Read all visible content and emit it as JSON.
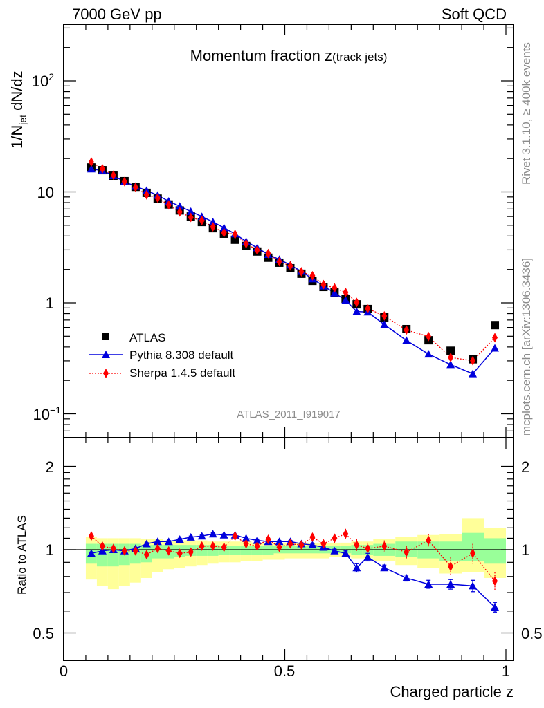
{
  "header": {
    "energy": "7000 GeV pp",
    "category": "Soft QCD"
  },
  "side_text": {
    "rivet": "Rivet 3.1.10, ≥ 400k events",
    "mcplots": "mcplots.cern.ch [arXiv:1306.3436]"
  },
  "chart_data": [
    {
      "type": "scatter",
      "title": "Momentum fraction z",
      "title_suffix": "(track jets)",
      "ylabel_main": "1/N",
      "ylabel_sub": "jet",
      "ylabel_tail": " dN/dz",
      "xlabel": "Charged particle z",
      "analysis_id": "ATLAS_2011_I919017",
      "yscale": "log",
      "xlim": [
        0,
        1.017
      ],
      "ylim": [
        0.06,
        320
      ],
      "y_ticks": [
        {
          "base": "10",
          "exp": "2"
        },
        {
          "base": "10",
          "exp": ""
        },
        {
          "base": "1",
          "exp": ""
        },
        {
          "base": "10",
          "exp": "−1"
        }
      ],
      "y_tick_values": [
        100,
        10,
        1,
        0.1
      ],
      "legend": {
        "placement": "lower-left",
        "entries": [
          "ATLAS",
          "Pythia 8.308 default",
          "Sherpa 1.4.5 default"
        ]
      },
      "x": [
        0.0625,
        0.0875,
        0.1125,
        0.1375,
        0.1625,
        0.1875,
        0.2125,
        0.2375,
        0.2625,
        0.2875,
        0.3125,
        0.3375,
        0.3625,
        0.3875,
        0.4125,
        0.4375,
        0.4625,
        0.4875,
        0.5125,
        0.5375,
        0.5625,
        0.5875,
        0.6125,
        0.6375,
        0.6625,
        0.6875,
        0.725,
        0.775,
        0.825,
        0.875,
        0.925,
        0.975
      ],
      "bin_edges": [
        0.05,
        0.075,
        0.1,
        0.125,
        0.15,
        0.175,
        0.2,
        0.225,
        0.25,
        0.275,
        0.3,
        0.325,
        0.35,
        0.375,
        0.4,
        0.425,
        0.45,
        0.475,
        0.5,
        0.525,
        0.55,
        0.575,
        0.6,
        0.625,
        0.65,
        0.675,
        0.7,
        0.75,
        0.8,
        0.85,
        0.9,
        0.95,
        1.0
      ],
      "series": [
        {
          "name": "ATLAS",
          "color": "#000000",
          "marker": "square",
          "values": [
            16.6,
            15.7,
            14.0,
            12.5,
            11.1,
            9.8,
            8.7,
            7.7,
            6.8,
            6.0,
            5.35,
            4.7,
            4.2,
            3.7,
            3.25,
            2.9,
            2.55,
            2.3,
            2.05,
            1.83,
            1.58,
            1.39,
            1.24,
            1.09,
            0.97,
            0.88,
            0.74,
            0.58,
            0.46,
            0.37,
            0.31,
            0.63
          ]
        },
        {
          "name": "Pythia 8.308 default",
          "color": "#0000dd",
          "marker": "triangle",
          "line": "solid",
          "ratio": [
            0.97,
            0.99,
            1.0,
            0.99,
            1.01,
            1.05,
            1.07,
            1.07,
            1.09,
            1.11,
            1.12,
            1.14,
            1.13,
            1.13,
            1.1,
            1.08,
            1.07,
            1.07,
            1.07,
            1.05,
            1.04,
            1.02,
            0.99,
            0.97,
            0.86,
            0.94,
            0.86,
            0.79,
            0.75,
            0.75,
            0.74,
            0.62
          ],
          "ratio_err": [
            0.01,
            0.01,
            0.01,
            0.01,
            0.01,
            0.01,
            0.01,
            0.01,
            0.01,
            0.01,
            0.01,
            0.01,
            0.01,
            0.01,
            0.01,
            0.01,
            0.01,
            0.01,
            0.01,
            0.01,
            0.01,
            0.01,
            0.015,
            0.02,
            0.03,
            0.03,
            0.02,
            0.02,
            0.025,
            0.03,
            0.035,
            0.025
          ]
        },
        {
          "name": "Sherpa 1.4.5 default",
          "color": "#ff0000",
          "marker": "diamond",
          "line": "dotted",
          "ratio": [
            1.12,
            1.03,
            1.01,
            0.99,
            0.99,
            0.96,
            1.01,
            0.99,
            0.97,
            0.98,
            1.03,
            1.03,
            1.02,
            1.12,
            1.05,
            1.03,
            1.09,
            1.02,
            1.05,
            1.04,
            1.11,
            1.05,
            1.1,
            1.14,
            1.04,
            1.01,
            1.03,
            0.98,
            1.08,
            0.87,
            0.97,
            0.77
          ],
          "ratio_err": [
            0.01,
            0.01,
            0.01,
            0.01,
            0.01,
            0.01,
            0.015,
            0.015,
            0.015,
            0.02,
            0.02,
            0.02,
            0.02,
            0.03,
            0.03,
            0.03,
            0.03,
            0.03,
            0.03,
            0.03,
            0.03,
            0.03,
            0.04,
            0.05,
            0.05,
            0.05,
            0.05,
            0.05,
            0.06,
            0.07,
            0.08,
            0.06
          ]
        }
      ]
    },
    {
      "type": "scatter",
      "ylabel": "Ratio to ATLAS",
      "yscale": "log",
      "ylim": [
        0.4,
        2.54
      ],
      "y_tick_labels": [
        "2",
        "1",
        "0.5"
      ],
      "y_tick_values": [
        2,
        1,
        0.5
      ],
      "x_tick_labels": [
        "0",
        "0.5",
        "1"
      ],
      "x_tick_values": [
        0,
        0.5,
        1
      ],
      "reference": 1,
      "band_colors": {
        "inner": "#99ff99",
        "outer": "#ffff99"
      },
      "bands": {
        "outer_lo": [
          0.78,
          0.74,
          0.72,
          0.74,
          0.76,
          0.79,
          0.83,
          0.85,
          0.86,
          0.87,
          0.88,
          0.89,
          0.9,
          0.9,
          0.91,
          0.91,
          0.92,
          0.92,
          0.93,
          0.93,
          0.93,
          0.93,
          0.94,
          0.94,
          0.93,
          0.93,
          0.91,
          0.88,
          0.86,
          0.82,
          0.83,
          0.79
        ],
        "outer_hi": [
          1.11,
          1.1,
          1.1,
          1.1,
          1.1,
          1.09,
          1.09,
          1.08,
          1.08,
          1.08,
          1.08,
          1.07,
          1.07,
          1.07,
          1.07,
          1.06,
          1.06,
          1.06,
          1.06,
          1.06,
          1.06,
          1.06,
          1.06,
          1.06,
          1.07,
          1.07,
          1.09,
          1.11,
          1.13,
          1.14,
          1.3,
          1.2
        ],
        "inner_lo": [
          0.89,
          0.87,
          0.87,
          0.88,
          0.89,
          0.9,
          0.93,
          0.93,
          0.94,
          0.95,
          0.95,
          0.95,
          0.96,
          0.96,
          0.96,
          0.96,
          0.96,
          0.97,
          0.97,
          0.97,
          0.97,
          0.97,
          0.97,
          0.97,
          0.96,
          0.96,
          0.95,
          0.94,
          0.93,
          0.91,
          0.91,
          0.89
        ],
        "inner_hi": [
          1.05,
          1.05,
          1.05,
          1.05,
          1.05,
          1.04,
          1.04,
          1.04,
          1.04,
          1.04,
          1.04,
          1.04,
          1.03,
          1.03,
          1.03,
          1.03,
          1.03,
          1.03,
          1.03,
          1.03,
          1.03,
          1.03,
          1.03,
          1.03,
          1.04,
          1.04,
          1.05,
          1.07,
          1.07,
          1.07,
          1.15,
          1.1
        ]
      }
    }
  ]
}
